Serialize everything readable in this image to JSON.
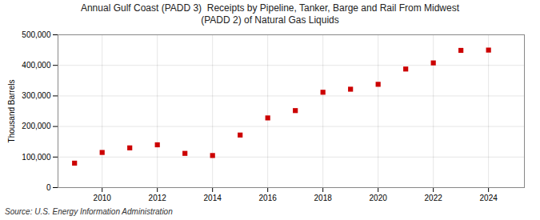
{
  "chart_data": {
    "type": "scatter",
    "title": "Annual Gulf Coast (PADD 3)  Receipts by Pipeline, Tanker, Barge and Rail From Midwest\n(PADD 2) of Natural Gas Liquids",
    "ylabel": "Thousand Barrels",
    "annotations": [
      "Source: U.S. Energy Information Administration"
    ],
    "x": [
      2009,
      2010,
      2011,
      2012,
      2013,
      2014,
      2015,
      2016,
      2017,
      2018,
      2019,
      2020,
      2021,
      2022,
      2023,
      2024
    ],
    "values": [
      80000,
      115000,
      130000,
      140000,
      112000,
      105000,
      172000,
      228000,
      252000,
      312000,
      322000,
      338000,
      388000,
      408000,
      449000,
      450000
    ],
    "color": "#cc0000",
    "marker": "square",
    "grid": true,
    "xlim": [
      2008.4,
      2025.3
    ],
    "xticks": [
      2010,
      2012,
      2014,
      2016,
      2018,
      2020,
      2022,
      2024
    ],
    "ylim": [
      0,
      500000
    ],
    "yticks": [
      0,
      {
        "value": 100000,
        "label": "100,000"
      },
      {
        "value": 200000,
        "label": "200,000"
      },
      {
        "value": 300000,
        "label": "300,000"
      },
      {
        "value": 400000,
        "label": "400,000"
      },
      {
        "value": 500000,
        "label": "500,000"
      }
    ]
  }
}
